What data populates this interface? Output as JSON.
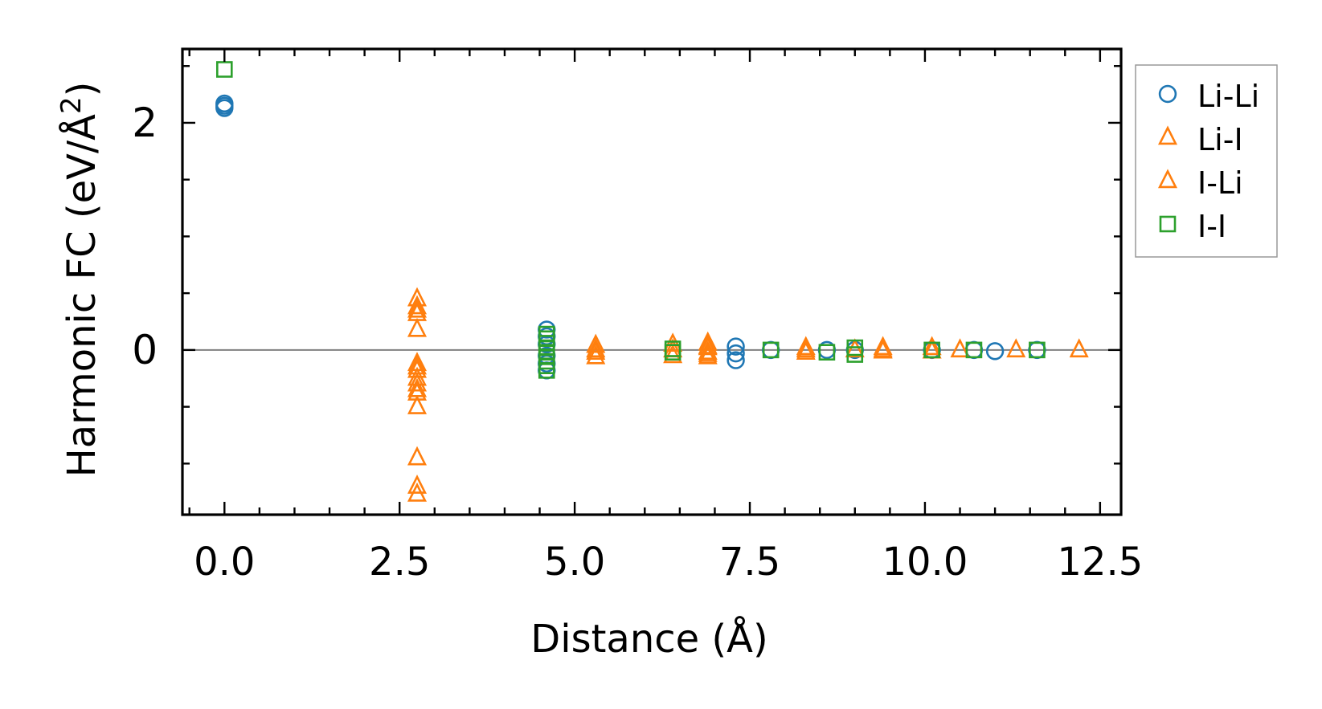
{
  "chart_data": {
    "type": "scatter",
    "xlabel": "Distance (Å)",
    "ylabel_main": "Harmonic FC (eV/Å",
    "ylabel_sup": "2",
    "ylabel_end": ")",
    "xlim": [
      -0.6,
      12.8
    ],
    "ylim": [
      -1.45,
      2.65
    ],
    "x_ticks": [
      0.0,
      2.5,
      5.0,
      7.5,
      10.0,
      12.5
    ],
    "x_tick_labels": [
      "0.0",
      "2.5",
      "5.0",
      "7.5",
      "10.0",
      "12.5"
    ],
    "x_minor_step": 0.5,
    "y_ticks": [
      0,
      2
    ],
    "y_tick_labels": [
      "0",
      "2"
    ],
    "y_minor_step": 0.5,
    "zero_line": 0,
    "legend_position": "outside-right-top",
    "series": [
      {
        "name": "Li-Li",
        "marker": "circle",
        "color": "#1f77b4",
        "points": [
          [
            0.0,
            2.15
          ],
          [
            0.0,
            2.17
          ],
          [
            0.0,
            2.13
          ],
          [
            4.6,
            0.18
          ],
          [
            4.6,
            0.12
          ],
          [
            4.6,
            0.05
          ],
          [
            4.6,
            -0.05
          ],
          [
            4.6,
            -0.12
          ],
          [
            4.6,
            -0.18
          ],
          [
            7.3,
            0.03
          ],
          [
            7.3,
            -0.03
          ],
          [
            7.3,
            -0.09
          ],
          [
            7.8,
            0.0
          ],
          [
            8.6,
            0.0
          ],
          [
            9.0,
            0.0
          ],
          [
            10.1,
            0.0
          ],
          [
            10.7,
            0.0
          ],
          [
            11.0,
            -0.01
          ],
          [
            11.6,
            0.0
          ]
        ]
      },
      {
        "name": "Li-I",
        "marker": "triangle",
        "color": "#ff7f0e",
        "points": [
          [
            2.75,
            0.45
          ],
          [
            2.75,
            0.38
          ],
          [
            2.75,
            0.32
          ],
          [
            2.75,
            0.18
          ],
          [
            2.75,
            -0.12
          ],
          [
            2.75,
            -0.18
          ],
          [
            2.75,
            -0.25
          ],
          [
            2.75,
            -0.35
          ],
          [
            2.75,
            -0.5
          ],
          [
            2.75,
            -0.95
          ],
          [
            2.75,
            -1.2
          ],
          [
            2.75,
            -1.27
          ],
          [
            5.3,
            0.04
          ],
          [
            5.3,
            -0.02
          ],
          [
            5.3,
            -0.06
          ],
          [
            6.4,
            0.05
          ],
          [
            6.4,
            0.0
          ],
          [
            6.4,
            -0.05
          ],
          [
            6.9,
            0.06
          ],
          [
            6.9,
            0.02
          ],
          [
            6.9,
            -0.02
          ],
          [
            6.9,
            -0.06
          ],
          [
            8.3,
            0.02
          ],
          [
            8.3,
            -0.02
          ],
          [
            9.0,
            0.0
          ],
          [
            9.4,
            0.02
          ],
          [
            9.4,
            -0.01
          ],
          [
            10.1,
            0.02
          ],
          [
            10.5,
            0.0
          ],
          [
            11.3,
            0.0
          ],
          [
            12.2,
            0.0
          ]
        ]
      },
      {
        "name": "I-Li",
        "marker": "triangle",
        "color": "#ff7f0e",
        "points": [
          [
            2.75,
            0.35
          ],
          [
            2.75,
            -0.15
          ],
          [
            2.75,
            -0.3
          ],
          [
            2.75,
            -0.38
          ],
          [
            5.3,
            0.0
          ],
          [
            6.9,
            0.03
          ],
          [
            6.9,
            -0.04
          ],
          [
            8.3,
            0.0
          ],
          [
            9.4,
            0.0
          ],
          [
            10.1,
            -0.01
          ]
        ]
      },
      {
        "name": "I-I",
        "marker": "square",
        "color": "#2ca02c",
        "points": [
          [
            0.0,
            2.47
          ],
          [
            4.6,
            0.14
          ],
          [
            4.6,
            0.1
          ],
          [
            4.6,
            0.06
          ],
          [
            4.6,
            0.02
          ],
          [
            4.6,
            -0.02
          ],
          [
            4.6,
            -0.06
          ],
          [
            4.6,
            -0.1
          ],
          [
            4.6,
            -0.14
          ],
          [
            4.6,
            -0.18
          ],
          [
            6.4,
            0.01
          ],
          [
            6.4,
            -0.02
          ],
          [
            7.8,
            0.0
          ],
          [
            8.6,
            -0.02
          ],
          [
            9.0,
            0.02
          ],
          [
            9.0,
            -0.04
          ],
          [
            10.1,
            0.0
          ],
          [
            10.7,
            0.0
          ],
          [
            11.6,
            0.0
          ]
        ]
      }
    ]
  }
}
